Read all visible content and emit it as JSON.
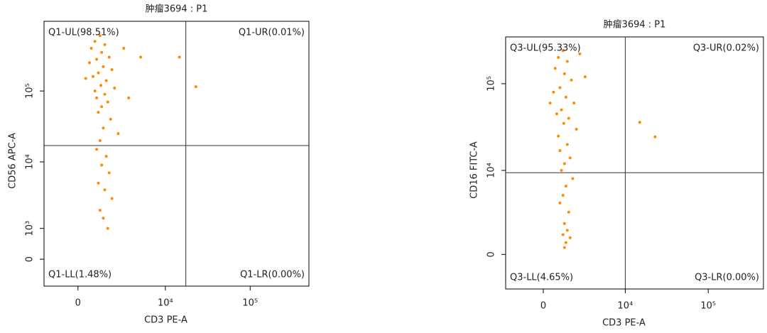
{
  "chart_data": [
    {
      "type": "scatter",
      "title": "肿瘤3694 : P1",
      "x_label": "CD3 PE-A",
      "y_label": "CD56 APC-A",
      "color": "#ff8c00",
      "scale": "biexponential",
      "xlim": [
        -2000,
        490000
      ],
      "ylim": [
        -840,
        960000
      ],
      "xticks": [
        0,
        {
          "value": 10000,
          "label": "10⁴"
        },
        {
          "value": 100000,
          "label": "10⁵"
        }
      ],
      "yticks": [
        0,
        {
          "value": 1000,
          "label": "10³"
        },
        {
          "value": 10000,
          "label": "10⁴"
        },
        {
          "value": 100000,
          "label": "10⁵"
        }
      ],
      "gate": {
        "x": 17500,
        "y": 17000
      },
      "quadrants": [
        "Q1-UL(98.51%)",
        "Q1-UR(0.01%)",
        "Q1-LL(1.48%)",
        "Q1-LR(0.00%)"
      ],
      "x": [
        1200,
        900,
        1500,
        700,
        1300,
        1800,
        1000,
        600,
        1400,
        2000,
        1100,
        800,
        1600,
        1250,
        2200,
        900,
        1500,
        1000,
        1700,
        1300,
        1100,
        1900,
        1400,
        1200,
        2500,
        1000,
        1600,
        1300,
        1800,
        1100,
        1500,
        2000,
        1200,
        1400,
        1700,
        3500,
        400,
        3000,
        5000,
        23000,
        14700
      ],
      "values": [
        600000,
        500000,
        450000,
        400000,
        350000,
        300000,
        280000,
        250000,
        220000,
        200000,
        180000,
        160000,
        140000,
        120000,
        110000,
        100000,
        90000,
        80000,
        70000,
        60000,
        50000,
        40000,
        30000,
        20000,
        25000,
        15000,
        12000,
        9000,
        7000,
        5000,
        4000,
        3000,
        2000,
        1500,
        1000,
        80000,
        150000,
        400000,
        300000,
        115000,
        300000
      ]
    },
    {
      "type": "scatter",
      "title": "肿瘤3694 : P1",
      "x_label": "CD3 PE-A",
      "y_label": "CD16 FITC-A",
      "color": "#ff8c00",
      "scale": "biexponential",
      "xlim": [
        -2600,
        460000
      ],
      "ylim": [
        -2300,
        344000
      ],
      "xticks": [
        0,
        {
          "value": 10000,
          "label": "10⁴"
        },
        {
          "value": 100000,
          "label": "10⁵"
        }
      ],
      "yticks": [
        0,
        {
          "value": 10000,
          "label": "10⁴"
        },
        {
          "value": 100000,
          "label": "10⁵"
        }
      ],
      "gate": {
        "x": 10000,
        "y": 9400
      },
      "quadrants": [
        "Q3-UL(95.33%)",
        "Q3-UR(0.02%)",
        "Q3-LL(4.65%)",
        "Q3-LR(0.00%)"
      ],
      "x": [
        1200,
        900,
        1500,
        700,
        1300,
        1800,
        1000,
        600,
        1400,
        2000,
        1100,
        800,
        1600,
        1250,
        2200,
        900,
        1500,
        1000,
        1700,
        1300,
        1100,
        1900,
        1400,
        1200,
        1000,
        1600,
        1300,
        1500,
        1200,
        1700,
        1400,
        1300,
        3000,
        400,
        2500,
        15000,
        23000
      ],
      "values": [
        240000,
        200000,
        180000,
        150000,
        130000,
        110000,
        90000,
        80000,
        70000,
        60000,
        50000,
        45000,
        40000,
        35000,
        30000,
        25000,
        20000,
        17000,
        14000,
        12000,
        10000,
        8000,
        6500,
        5000,
        4000,
        3000,
        2000,
        1500,
        1200,
        1000,
        700,
        400,
        120000,
        60000,
        220000,
        36000,
        24500
      ]
    }
  ]
}
